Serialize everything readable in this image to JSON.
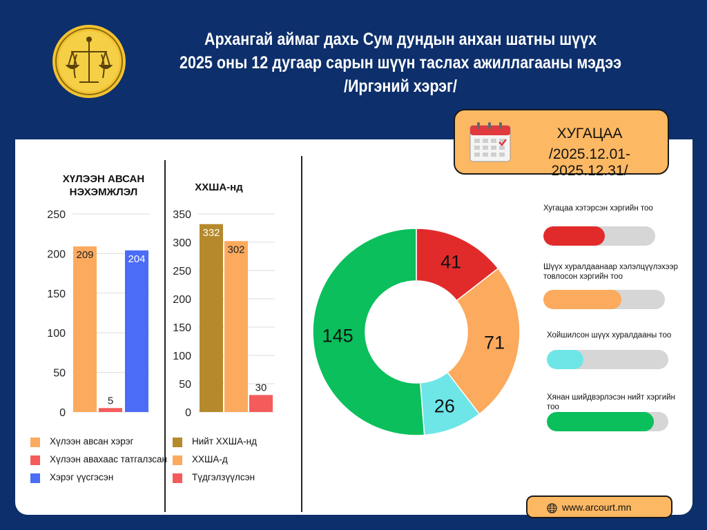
{
  "header": {
    "title_lines": [
      "Архангай аймаг дахь Сум дундын анхан шатны шүүх",
      "2025 оны 12 дугаар сарын шүүн таслах ажиллагааны мэдээ",
      "/Иргэний хэрэг/"
    ]
  },
  "period": {
    "label": "ХУГАЦАА",
    "value": "/2025.12.01-2025.12.31/"
  },
  "colors": {
    "background": "#0d2f6b",
    "accent": "#fdb863"
  },
  "chart_data": [
    {
      "type": "bar",
      "title": "ХҮЛЭЭН АВСАН НЭХЭМЖЛЭЛ",
      "title_lines": [
        "ХҮЛЭЭН АВСАН",
        "НЭХЭМЖЛЭЛ"
      ],
      "ylim": [
        0,
        250
      ],
      "yticks": [
        0,
        50,
        100,
        150,
        200,
        250
      ],
      "grid": true,
      "legend_position": "bottom",
      "series": [
        {
          "name": "Хүлээн авсан хэрэг",
          "value": 209,
          "color": "#fcaa5e"
        },
        {
          "name": "Хүлээн авахаас татгалзсан",
          "value": 5,
          "color": "#f45b5b"
        },
        {
          "name": "Хэрэг үүсгэсэн",
          "value": 204,
          "color": "#4a6cf7"
        }
      ]
    },
    {
      "type": "bar",
      "title": "ХХШA-нд",
      "ylim": [
        0,
        350
      ],
      "yticks": [
        0,
        50,
        100,
        150,
        200,
        250,
        300,
        350
      ],
      "grid": true,
      "legend_position": "bottom",
      "series": [
        {
          "name": "Нийт ХХША-нд",
          "value": 332,
          "color": "#b5892c"
        },
        {
          "name": "ХХША-д",
          "value": 302,
          "color": "#fcaa5e"
        },
        {
          "name": "Түдгэлзүүлсэн",
          "value": 30,
          "color": "#f45b5b"
        }
      ]
    },
    {
      "type": "pie",
      "donut": true,
      "slices": [
        {
          "label": "Хугацаа хэтэрсэн хэргийн тоо",
          "value": 41,
          "color": "#e12b2b"
        },
        {
          "label": "Шүүх хуралдаанаар хэлэлцүүлэхээр товлосон хэргийн тоо",
          "value": 71,
          "color": "#fcaa5e"
        },
        {
          "label": "Хойшилсон шүүх хуралдааны тоо",
          "value": 26,
          "color": "#6ee6e8"
        },
        {
          "label": "Хянан шийдвэрлэсэн нийт хэргийн тоо",
          "value": 145,
          "color": "#0abf5c"
        }
      ]
    }
  ],
  "progress": [
    {
      "label": "Хугацаа хэтэрсэн хэргийн тоо",
      "fraction": 0.55,
      "color": "#e12b2b"
    },
    {
      "label": "Шүүх хуралдаанаар хэлэлцүүлэхээр товлосон хэргийн тоо",
      "fraction": 0.64,
      "color": "#fcaa5e"
    },
    {
      "label": "Хойшилсон шүүх хуралдааны тоо",
      "fraction": 0.3,
      "color": "#6ee6e8"
    },
    {
      "label": "Хянан шийдвэрлэсэн нийт хэргийн тоо",
      "fraction": 0.88,
      "color": "#0abf5c"
    }
  ],
  "footer": {
    "url": "www.arcourt.mn"
  }
}
